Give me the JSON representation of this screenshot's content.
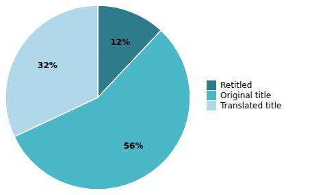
{
  "chart_data": {
    "type": "pie",
    "categories": [
      "Retitled",
      "Original title",
      "Translated title"
    ],
    "values": [
      12,
      56,
      32
    ],
    "value_labels": [
      "12%",
      "56%",
      "32%"
    ],
    "colors": [
      "#2E7B8C",
      "#4BB8C8",
      "#B0D8E8"
    ],
    "data_labels": true,
    "legend": "right"
  }
}
